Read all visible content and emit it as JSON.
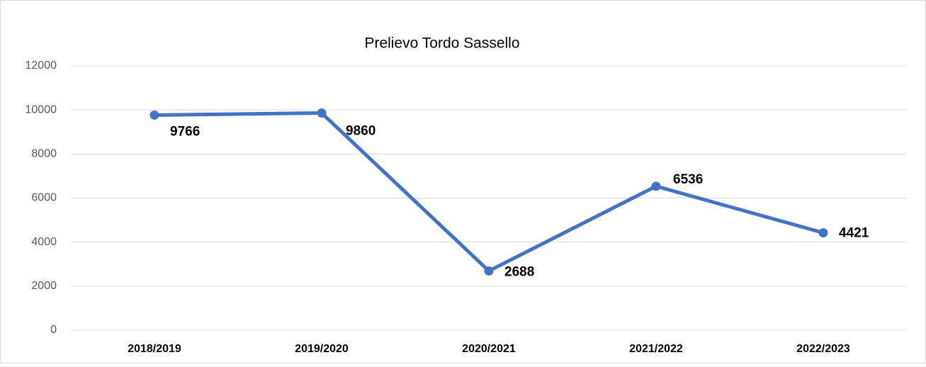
{
  "chart_data": {
    "type": "line",
    "title": "Prelievo Tordo Sassello",
    "categories": [
      "2018/2019",
      "2019/2020",
      "2020/2021",
      "2021/2022",
      "2022/2023"
    ],
    "values": [
      9766,
      9860,
      2688,
      6536,
      4421
    ],
    "color": "#4472c4",
    "ylim": [
      0,
      12000
    ],
    "yticks": [
      0,
      2000,
      4000,
      6000,
      8000,
      10000,
      12000
    ],
    "grid": true
  }
}
